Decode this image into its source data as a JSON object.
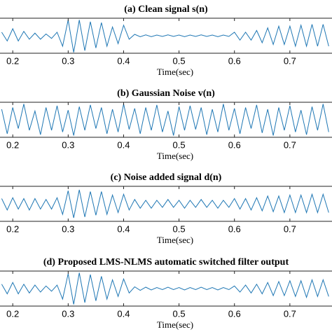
{
  "chart_data": [
    {
      "type": "line",
      "title": "(a) Clean signal s(n)",
      "xlabel": "Time(sec)",
      "xlim": [
        0.177,
        0.776
      ],
      "ylim": [
        -1,
        1
      ],
      "xticks": [
        0.2,
        0.3,
        0.4,
        0.5,
        0.6,
        0.7
      ],
      "x": [
        0.18,
        0.19,
        0.2,
        0.21,
        0.22,
        0.23,
        0.24,
        0.25,
        0.26,
        0.27,
        0.28,
        0.29,
        0.3,
        0.31,
        0.32,
        0.33,
        0.34,
        0.35,
        0.36,
        0.37,
        0.38,
        0.39,
        0.4,
        0.41,
        0.42,
        0.43,
        0.44,
        0.45,
        0.46,
        0.47,
        0.48,
        0.49,
        0.5,
        0.51,
        0.52,
        0.53,
        0.54,
        0.55,
        0.56,
        0.57,
        0.58,
        0.59,
        0.6,
        0.61,
        0.62,
        0.63,
        0.64,
        0.65,
        0.66,
        0.67,
        0.68,
        0.69,
        0.7,
        0.71,
        0.72,
        0.73,
        0.74,
        0.75,
        0.76,
        0.77
      ],
      "series": [
        {
          "color": "#1f77b4",
          "values": [
            0.2,
            -0.3,
            0.4,
            -0.3,
            0.25,
            -0.2,
            0.15,
            -0.2,
            0.1,
            -0.15,
            0.2,
            -0.6,
            0.9,
            -0.95,
            0.9,
            -0.85,
            0.8,
            -0.7,
            0.75,
            -0.6,
            0.5,
            -0.45,
            0.6,
            -0.2,
            0.08,
            -0.06,
            0.05,
            -0.05,
            0.04,
            -0.04,
            0.05,
            -0.04,
            0.04,
            -0.05,
            0.04,
            -0.04,
            0.05,
            -0.04,
            0.04,
            -0.05,
            0.04,
            -0.04,
            0.2,
            -0.25,
            0.2,
            -0.25,
            0.3,
            -0.4,
            0.45,
            -0.5,
            0.55,
            -0.5,
            0.55,
            -0.6,
            0.6,
            -0.6,
            0.65,
            -0.6,
            0.65,
            -0.6
          ]
        }
      ]
    },
    {
      "type": "line",
      "title": "(b) Gaussian Noise v(n)",
      "xlabel": "Time(sec)",
      "xlim": [
        0.177,
        0.776
      ],
      "ylim": [
        -1,
        1
      ],
      "xticks": [
        0.2,
        0.3,
        0.4,
        0.5,
        0.6,
        0.7
      ],
      "x": [
        0.18,
        0.19,
        0.2,
        0.21,
        0.22,
        0.23,
        0.24,
        0.25,
        0.26,
        0.27,
        0.28,
        0.29,
        0.3,
        0.31,
        0.32,
        0.33,
        0.34,
        0.35,
        0.36,
        0.37,
        0.38,
        0.39,
        0.4,
        0.41,
        0.42,
        0.43,
        0.44,
        0.45,
        0.46,
        0.47,
        0.48,
        0.49,
        0.5,
        0.51,
        0.52,
        0.53,
        0.54,
        0.55,
        0.56,
        0.57,
        0.58,
        0.59,
        0.6,
        0.61,
        0.62,
        0.63,
        0.64,
        0.65,
        0.66,
        0.67,
        0.68,
        0.69,
        0.7,
        0.71,
        0.72,
        0.73,
        0.74,
        0.75,
        0.76,
        0.77
      ],
      "series": [
        {
          "color": "#1f77b4",
          "values": [
            0.6,
            -0.8,
            0.7,
            -0.5,
            0.9,
            -0.6,
            0.5,
            -0.85,
            0.7,
            -0.6,
            0.8,
            -0.7,
            0.55,
            -0.9,
            0.75,
            -0.6,
            0.85,
            -0.5,
            0.7,
            -0.8,
            0.6,
            -0.7,
            0.9,
            -0.55,
            0.65,
            -0.8,
            0.7,
            -0.6,
            0.85,
            -0.7,
            0.5,
            -0.9,
            0.75,
            -0.6,
            0.8,
            -0.55,
            0.7,
            -0.85,
            0.6,
            -0.7,
            0.9,
            -0.6,
            0.65,
            -0.8,
            0.7,
            -0.5,
            0.85,
            -0.75,
            0.6,
            -0.9,
            0.7,
            -0.6,
            0.8,
            -0.7,
            0.55,
            -0.85,
            0.75,
            -0.6,
            0.9,
            -0.7
          ]
        }
      ]
    },
    {
      "type": "line",
      "title": "(c) Noise added signal d(n)",
      "xlabel": "Time(sec)",
      "xlim": [
        0.177,
        0.776
      ],
      "ylim": [
        -1,
        1
      ],
      "xticks": [
        0.2,
        0.3,
        0.4,
        0.5,
        0.6,
        0.7
      ],
      "x": [
        0.18,
        0.19,
        0.2,
        0.21,
        0.22,
        0.23,
        0.24,
        0.25,
        0.26,
        0.27,
        0.28,
        0.29,
        0.3,
        0.31,
        0.32,
        0.33,
        0.34,
        0.35,
        0.36,
        0.37,
        0.38,
        0.39,
        0.4,
        0.41,
        0.42,
        0.43,
        0.44,
        0.45,
        0.46,
        0.47,
        0.48,
        0.49,
        0.5,
        0.51,
        0.52,
        0.53,
        0.54,
        0.55,
        0.56,
        0.57,
        0.58,
        0.59,
        0.6,
        0.61,
        0.62,
        0.63,
        0.64,
        0.65,
        0.66,
        0.67,
        0.68,
        0.69,
        0.7,
        0.71,
        0.72,
        0.73,
        0.74,
        0.75,
        0.76,
        0.77
      ],
      "series": [
        {
          "color": "#1f77b4",
          "values": [
            0.3,
            -0.35,
            0.35,
            -0.3,
            0.3,
            -0.35,
            0.3,
            -0.3,
            0.25,
            -0.3,
            0.35,
            -0.6,
            0.75,
            -0.8,
            0.8,
            -0.75,
            0.7,
            -0.65,
            0.7,
            -0.6,
            0.5,
            -0.5,
            0.55,
            -0.35,
            0.25,
            -0.25,
            0.2,
            -0.25,
            0.2,
            -0.2,
            0.25,
            -0.2,
            0.2,
            -0.25,
            0.2,
            -0.2,
            0.25,
            -0.2,
            0.2,
            -0.25,
            0.2,
            -0.2,
            0.3,
            -0.3,
            0.3,
            -0.35,
            0.35,
            -0.4,
            0.45,
            -0.45,
            0.45,
            -0.5,
            0.5,
            -0.5,
            0.5,
            -0.5,
            0.55,
            -0.5,
            0.55,
            -0.5
          ]
        }
      ]
    },
    {
      "type": "line",
      "title": "(d) Proposed LMS-NLMS automatic switched filter output",
      "xlabel": "Time(sec)",
      "xlim": [
        0.177,
        0.776
      ],
      "ylim": [
        -1,
        1
      ],
      "xticks": [
        0.2,
        0.3,
        0.4,
        0.5,
        0.6,
        0.7
      ],
      "x": [
        0.18,
        0.19,
        0.2,
        0.21,
        0.22,
        0.23,
        0.24,
        0.25,
        0.26,
        0.27,
        0.28,
        0.29,
        0.3,
        0.31,
        0.32,
        0.33,
        0.34,
        0.35,
        0.36,
        0.37,
        0.38,
        0.39,
        0.4,
        0.41,
        0.42,
        0.43,
        0.44,
        0.45,
        0.46,
        0.47,
        0.48,
        0.49,
        0.5,
        0.51,
        0.52,
        0.53,
        0.54,
        0.55,
        0.56,
        0.57,
        0.58,
        0.59,
        0.6,
        0.61,
        0.62,
        0.63,
        0.64,
        0.65,
        0.66,
        0.67,
        0.68,
        0.69,
        0.7,
        0.71,
        0.72,
        0.73,
        0.74,
        0.75,
        0.76,
        0.77
      ],
      "series": [
        {
          "color": "#1f77b4",
          "values": [
            0.25,
            -0.3,
            0.35,
            -0.3,
            0.25,
            -0.25,
            0.2,
            -0.2,
            0.15,
            -0.15,
            0.2,
            -0.6,
            0.85,
            -0.9,
            0.9,
            -0.8,
            0.8,
            -0.7,
            0.7,
            -0.6,
            0.5,
            -0.45,
            0.55,
            -0.25,
            0.1,
            -0.1,
            0.08,
            -0.08,
            0.06,
            -0.06,
            0.08,
            -0.06,
            0.06,
            -0.08,
            0.06,
            -0.06,
            0.08,
            -0.06,
            0.06,
            -0.08,
            0.06,
            -0.06,
            0.15,
            -0.2,
            0.2,
            -0.25,
            0.25,
            -0.3,
            0.35,
            -0.4,
            0.4,
            -0.4,
            0.45,
            -0.45,
            0.45,
            -0.5,
            0.5,
            -0.45,
            0.5,
            -0.45
          ]
        }
      ]
    }
  ]
}
